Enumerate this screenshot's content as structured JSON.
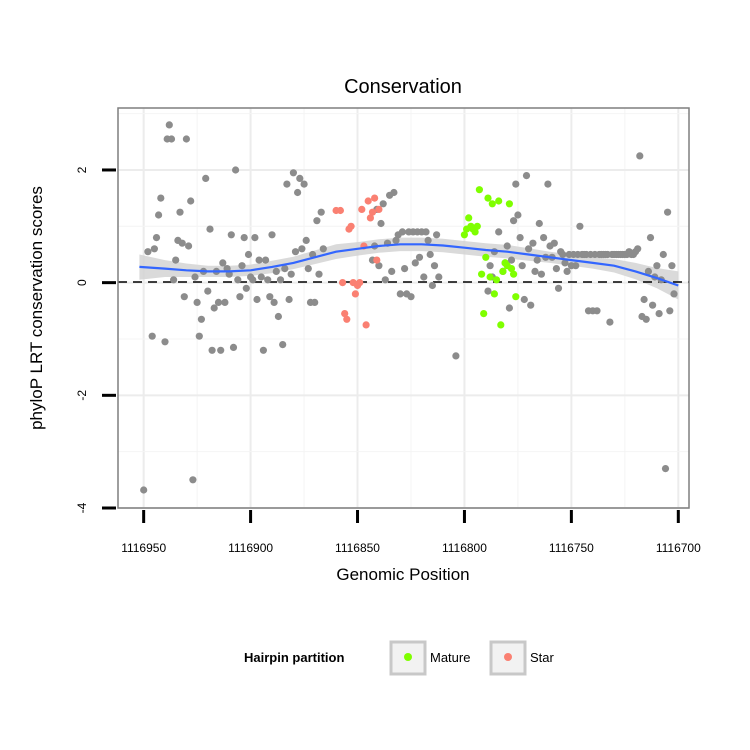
{
  "chart_data": {
    "type": "scatter",
    "title": "Conservation",
    "xlabel": "Genomic Position",
    "ylabel": "phyloP LRT conservation scores",
    "x_reversed": true,
    "xlim": [
      1116962,
      1116695
    ],
    "ylim": [
      -4,
      3.1
    ],
    "x_ticks": [
      1116950,
      1116900,
      1116850,
      1116800,
      1116750,
      1116700
    ],
    "x_tick_labels": [
      "1116950",
      "1116900",
      "1116850",
      "1116800",
      "1116750",
      "1116700"
    ],
    "y_ticks": [
      -4,
      -2,
      0,
      2
    ],
    "y_tick_labels": [
      "-4",
      "-2",
      "0",
      "2"
    ],
    "grid": true,
    "reference_line": {
      "y": 0,
      "style": "dashed"
    },
    "legend": {
      "title": "Hairpin partition",
      "placement": "bottom",
      "entries": [
        {
          "label": "Mature",
          "color": "#7fff00"
        },
        {
          "label": "Star",
          "color": "#fa8072"
        }
      ]
    },
    "colors": {
      "other": "#8c8c8c",
      "Mature": "#7fff00",
      "Star": "#fa8072",
      "trend": "#3366ff",
      "band": "#d3d3d3"
    },
    "series": [
      {
        "name": "Other",
        "points": [
          [
            1116950,
            -3.68
          ],
          [
            1116948,
            0.55
          ],
          [
            1116946,
            -0.95
          ],
          [
            1116945,
            0.6
          ],
          [
            1116944,
            0.8
          ],
          [
            1116943,
            1.2
          ],
          [
            1116942,
            1.5
          ],
          [
            1116940,
            -1.05
          ],
          [
            1116939,
            2.55
          ],
          [
            1116938,
            2.8
          ],
          [
            1116937,
            2.55
          ],
          [
            1116936,
            0.05
          ],
          [
            1116935,
            0.4
          ],
          [
            1116934,
            0.75
          ],
          [
            1116933,
            1.25
          ],
          [
            1116932,
            0.7
          ],
          [
            1116931,
            -0.25
          ],
          [
            1116930,
            2.55
          ],
          [
            1116929,
            0.65
          ],
          [
            1116928,
            1.45
          ],
          [
            1116927,
            -3.5
          ],
          [
            1116926,
            0.1
          ],
          [
            1116925,
            -0.35
          ],
          [
            1116924,
            -0.95
          ],
          [
            1116923,
            -0.65
          ],
          [
            1116922,
            0.2
          ],
          [
            1116921,
            1.85
          ],
          [
            1116920,
            -0.15
          ],
          [
            1116919,
            0.95
          ],
          [
            1116918,
            -1.2
          ],
          [
            1116917,
            -0.45
          ],
          [
            1116916,
            0.2
          ],
          [
            1116915,
            -0.35
          ],
          [
            1116914,
            -1.2
          ],
          [
            1116913,
            0.35
          ],
          [
            1116912,
            -0.35
          ],
          [
            1116911,
            0.25
          ],
          [
            1116910,
            0.15
          ],
          [
            1116909,
            0.85
          ],
          [
            1116908,
            -1.15
          ],
          [
            1116907,
            2.0
          ],
          [
            1116906,
            0.05
          ],
          [
            1116905,
            -0.25
          ],
          [
            1116904,
            0.3
          ],
          [
            1116903,
            0.8
          ],
          [
            1116902,
            -0.1
          ],
          [
            1116901,
            0.5
          ],
          [
            1116900,
            0.1
          ],
          [
            1116899,
            0.05
          ],
          [
            1116898,
            0.8
          ],
          [
            1116897,
            -0.3
          ],
          [
            1116896,
            0.4
          ],
          [
            1116895,
            0.1
          ],
          [
            1116894,
            -1.2
          ],
          [
            1116893,
            0.4
          ],
          [
            1116892,
            0.05
          ],
          [
            1116891,
            -0.25
          ],
          [
            1116890,
            0.85
          ],
          [
            1116889,
            -0.35
          ],
          [
            1116888,
            0.2
          ],
          [
            1116887,
            -0.6
          ],
          [
            1116886,
            0.05
          ],
          [
            1116885,
            -1.1
          ],
          [
            1116884,
            0.25
          ],
          [
            1116883,
            1.75
          ],
          [
            1116882,
            -0.3
          ],
          [
            1116881,
            0.15
          ],
          [
            1116880,
            1.95
          ],
          [
            1116879,
            0.55
          ],
          [
            1116878,
            1.6
          ],
          [
            1116877,
            1.85
          ],
          [
            1116876,
            0.6
          ],
          [
            1116875,
            1.75
          ],
          [
            1116874,
            0.75
          ],
          [
            1116873,
            0.25
          ],
          [
            1116872,
            -0.35
          ],
          [
            1116871,
            0.5
          ],
          [
            1116870,
            -0.35
          ],
          [
            1116869,
            1.1
          ],
          [
            1116868,
            0.15
          ],
          [
            1116867,
            1.25
          ],
          [
            1116866,
            0.6
          ],
          [
            1116843,
            0.4
          ],
          [
            1116842,
            0.65
          ],
          [
            1116841,
            1.3
          ],
          [
            1116840,
            0.3
          ],
          [
            1116839,
            1.05
          ],
          [
            1116838,
            1.4
          ],
          [
            1116837,
            0.05
          ],
          [
            1116836,
            0.7
          ],
          [
            1116835,
            1.55
          ],
          [
            1116834,
            0.2
          ],
          [
            1116833,
            1.6
          ],
          [
            1116832,
            0.75
          ],
          [
            1116831,
            0.85
          ],
          [
            1116830,
            -0.2
          ],
          [
            1116829,
            0.9
          ],
          [
            1116828,
            0.25
          ],
          [
            1116827,
            -0.2
          ],
          [
            1116826,
            0.9
          ],
          [
            1116825,
            -0.25
          ],
          [
            1116824,
            0.9
          ],
          [
            1116823,
            0.35
          ],
          [
            1116822,
            0.9
          ],
          [
            1116821,
            0.45
          ],
          [
            1116820,
            0.9
          ],
          [
            1116819,
            0.1
          ],
          [
            1116818,
            0.9
          ],
          [
            1116817,
            0.75
          ],
          [
            1116816,
            0.5
          ],
          [
            1116815,
            -0.05
          ],
          [
            1116814,
            0.3
          ],
          [
            1116813,
            0.85
          ],
          [
            1116812,
            0.1
          ],
          [
            1116804,
            -1.3
          ],
          [
            1116789,
            -0.15
          ],
          [
            1116788,
            0.3
          ],
          [
            1116787,
            0.1
          ],
          [
            1116786,
            0.55
          ],
          [
            1116784,
            0.9
          ],
          [
            1116782,
            0.2
          ],
          [
            1116781,
            0.35
          ],
          [
            1116780,
            0.65
          ],
          [
            1116779,
            -0.45
          ],
          [
            1116778,
            0.4
          ],
          [
            1116777,
            1.1
          ],
          [
            1116776,
            1.75
          ],
          [
            1116775,
            1.2
          ],
          [
            1116774,
            0.8
          ],
          [
            1116773,
            0.3
          ],
          [
            1116772,
            -0.3
          ],
          [
            1116771,
            1.9
          ],
          [
            1116770,
            0.6
          ],
          [
            1116769,
            -0.4
          ],
          [
            1116768,
            0.7
          ],
          [
            1116767,
            0.2
          ],
          [
            1116766,
            0.4
          ],
          [
            1116765,
            1.05
          ],
          [
            1116764,
            0.15
          ],
          [
            1116763,
            0.8
          ],
          [
            1116762,
            0.45
          ],
          [
            1116761,
            1.75
          ],
          [
            1116760,
            0.65
          ],
          [
            1116759,
            0.45
          ],
          [
            1116758,
            0.7
          ],
          [
            1116757,
            0.25
          ],
          [
            1116756,
            -0.1
          ],
          [
            1116755,
            0.55
          ],
          [
            1116754,
            0.5
          ],
          [
            1116753,
            0.35
          ],
          [
            1116752,
            0.2
          ],
          [
            1116751,
            0.5
          ],
          [
            1116750,
            0.3
          ],
          [
            1116749,
            0.5
          ],
          [
            1116748,
            0.3
          ],
          [
            1116747,
            0.5
          ],
          [
            1116746,
            1.0
          ],
          [
            1116745,
            0.5
          ],
          [
            1116744,
            0.5
          ],
          [
            1116743,
            0.5
          ],
          [
            1116742,
            -0.5
          ],
          [
            1116741,
            0.5
          ],
          [
            1116740,
            -0.5
          ],
          [
            1116739,
            0.5
          ],
          [
            1116738,
            -0.5
          ],
          [
            1116737,
            0.5
          ],
          [
            1116736,
            0.5
          ],
          [
            1116735,
            0.5
          ],
          [
            1116734,
            0.5
          ],
          [
            1116733,
            0.5
          ],
          [
            1116732,
            -0.7
          ],
          [
            1116731,
            0.5
          ],
          [
            1116730,
            0.5
          ],
          [
            1116729,
            0.5
          ],
          [
            1116728,
            0.5
          ],
          [
            1116727,
            0.5
          ],
          [
            1116726,
            0.5
          ],
          [
            1116725,
            0.5
          ],
          [
            1116724,
            0.5
          ],
          [
            1116723,
            0.55
          ],
          [
            1116722,
            0.5
          ],
          [
            1116721,
            0.5
          ],
          [
            1116720,
            0.55
          ],
          [
            1116719,
            0.6
          ],
          [
            1116718,
            2.25
          ],
          [
            1116717,
            -0.6
          ],
          [
            1116716,
            -0.3
          ],
          [
            1116715,
            -0.65
          ],
          [
            1116714,
            0.2
          ],
          [
            1116713,
            0.8
          ],
          [
            1116712,
            -0.4
          ],
          [
            1116711,
            0.1
          ],
          [
            1116710,
            0.3
          ],
          [
            1116709,
            -0.55
          ],
          [
            1116708,
            0.05
          ],
          [
            1116707,
            0.5
          ],
          [
            1116706,
            -3.3
          ],
          [
            1116705,
            1.25
          ],
          [
            1116704,
            -0.5
          ],
          [
            1116703,
            0.3
          ],
          [
            1116702,
            -0.2
          ]
        ]
      },
      {
        "name": "Star",
        "points": [
          [
            1116860,
            1.28
          ],
          [
            1116858,
            1.28
          ],
          [
            1116857,
            0.0
          ],
          [
            1116856,
            -0.55
          ],
          [
            1116855,
            -0.65
          ],
          [
            1116854,
            0.95
          ],
          [
            1116853,
            1.0
          ],
          [
            1116852,
            0.0
          ],
          [
            1116851,
            -0.2
          ],
          [
            1116850,
            -0.05
          ],
          [
            1116849,
            0.0
          ],
          [
            1116848,
            1.3
          ],
          [
            1116847,
            0.65
          ],
          [
            1116846,
            -0.75
          ],
          [
            1116845,
            1.45
          ],
          [
            1116844,
            1.15
          ],
          [
            1116843,
            1.25
          ],
          [
            1116842,
            1.5
          ],
          [
            1116841,
            0.4
          ],
          [
            1116840,
            1.3
          ]
        ]
      },
      {
        "name": "Mature",
        "points": [
          [
            1116800,
            0.85
          ],
          [
            1116799,
            0.95
          ],
          [
            1116798,
            1.15
          ],
          [
            1116797,
            1.0
          ],
          [
            1116796,
            0.95
          ],
          [
            1116795,
            0.9
          ],
          [
            1116794,
            1.0
          ],
          [
            1116793,
            1.65
          ],
          [
            1116792,
            0.15
          ],
          [
            1116791,
            -0.55
          ],
          [
            1116790,
            0.45
          ],
          [
            1116789,
            1.5
          ],
          [
            1116788,
            0.1
          ],
          [
            1116787,
            1.4
          ],
          [
            1116786,
            -0.2
          ],
          [
            1116785,
            0.05
          ],
          [
            1116784,
            1.45
          ],
          [
            1116783,
            -0.75
          ],
          [
            1116782,
            0.2
          ],
          [
            1116781,
            0.35
          ],
          [
            1116780,
            0.3
          ],
          [
            1116779,
            1.4
          ],
          [
            1116778,
            0.25
          ],
          [
            1116777,
            0.15
          ],
          [
            1116776,
            -0.25
          ]
        ]
      }
    ],
    "trend": {
      "type": "loess",
      "x": [
        1116952,
        1116940,
        1116930,
        1116920,
        1116910,
        1116900,
        1116890,
        1116880,
        1116870,
        1116860,
        1116850,
        1116840,
        1116830,
        1116820,
        1116810,
        1116800,
        1116790,
        1116780,
        1116770,
        1116760,
        1116750,
        1116740,
        1116730,
        1116720,
        1116710,
        1116700
      ],
      "y": [
        0.28,
        0.25,
        0.22,
        0.2,
        0.2,
        0.22,
        0.28,
        0.35,
        0.45,
        0.55,
        0.6,
        0.65,
        0.68,
        0.68,
        0.66,
        0.62,
        0.58,
        0.55,
        0.5,
        0.45,
        0.4,
        0.35,
        0.3,
        0.2,
        0.08,
        -0.05
      ],
      "lower": [
        0.05,
        0.1,
        0.1,
        0.1,
        0.1,
        0.12,
        0.17,
        0.24,
        0.33,
        0.42,
        0.48,
        0.53,
        0.56,
        0.56,
        0.54,
        0.5,
        0.46,
        0.43,
        0.39,
        0.35,
        0.3,
        0.25,
        0.18,
        0.06,
        -0.1,
        -0.3
      ],
      "upper": [
        0.5,
        0.4,
        0.34,
        0.3,
        0.3,
        0.32,
        0.39,
        0.46,
        0.57,
        0.68,
        0.72,
        0.77,
        0.8,
        0.8,
        0.78,
        0.74,
        0.7,
        0.67,
        0.61,
        0.55,
        0.5,
        0.45,
        0.42,
        0.35,
        0.26,
        0.2
      ]
    }
  }
}
